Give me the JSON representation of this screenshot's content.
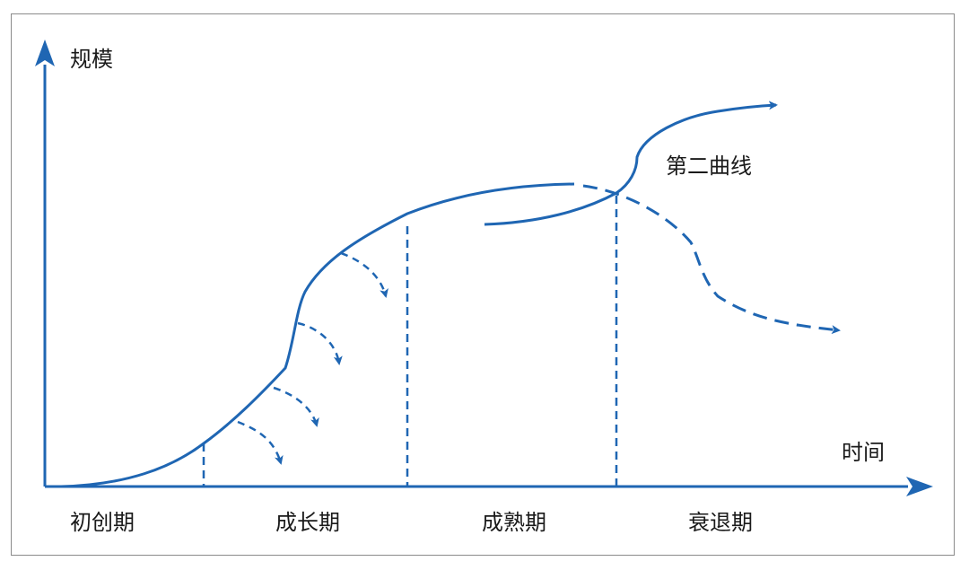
{
  "axes": {
    "y_label": "规模",
    "x_label": "时间"
  },
  "curves": {
    "second_curve_label": "第二曲线"
  },
  "stages": [
    "初创期",
    "成长期",
    "成熟期",
    "衰退期"
  ],
  "colors": {
    "line": "#1f66b3",
    "frame": "#8a8a8a",
    "text": "#1a1a1a"
  }
}
